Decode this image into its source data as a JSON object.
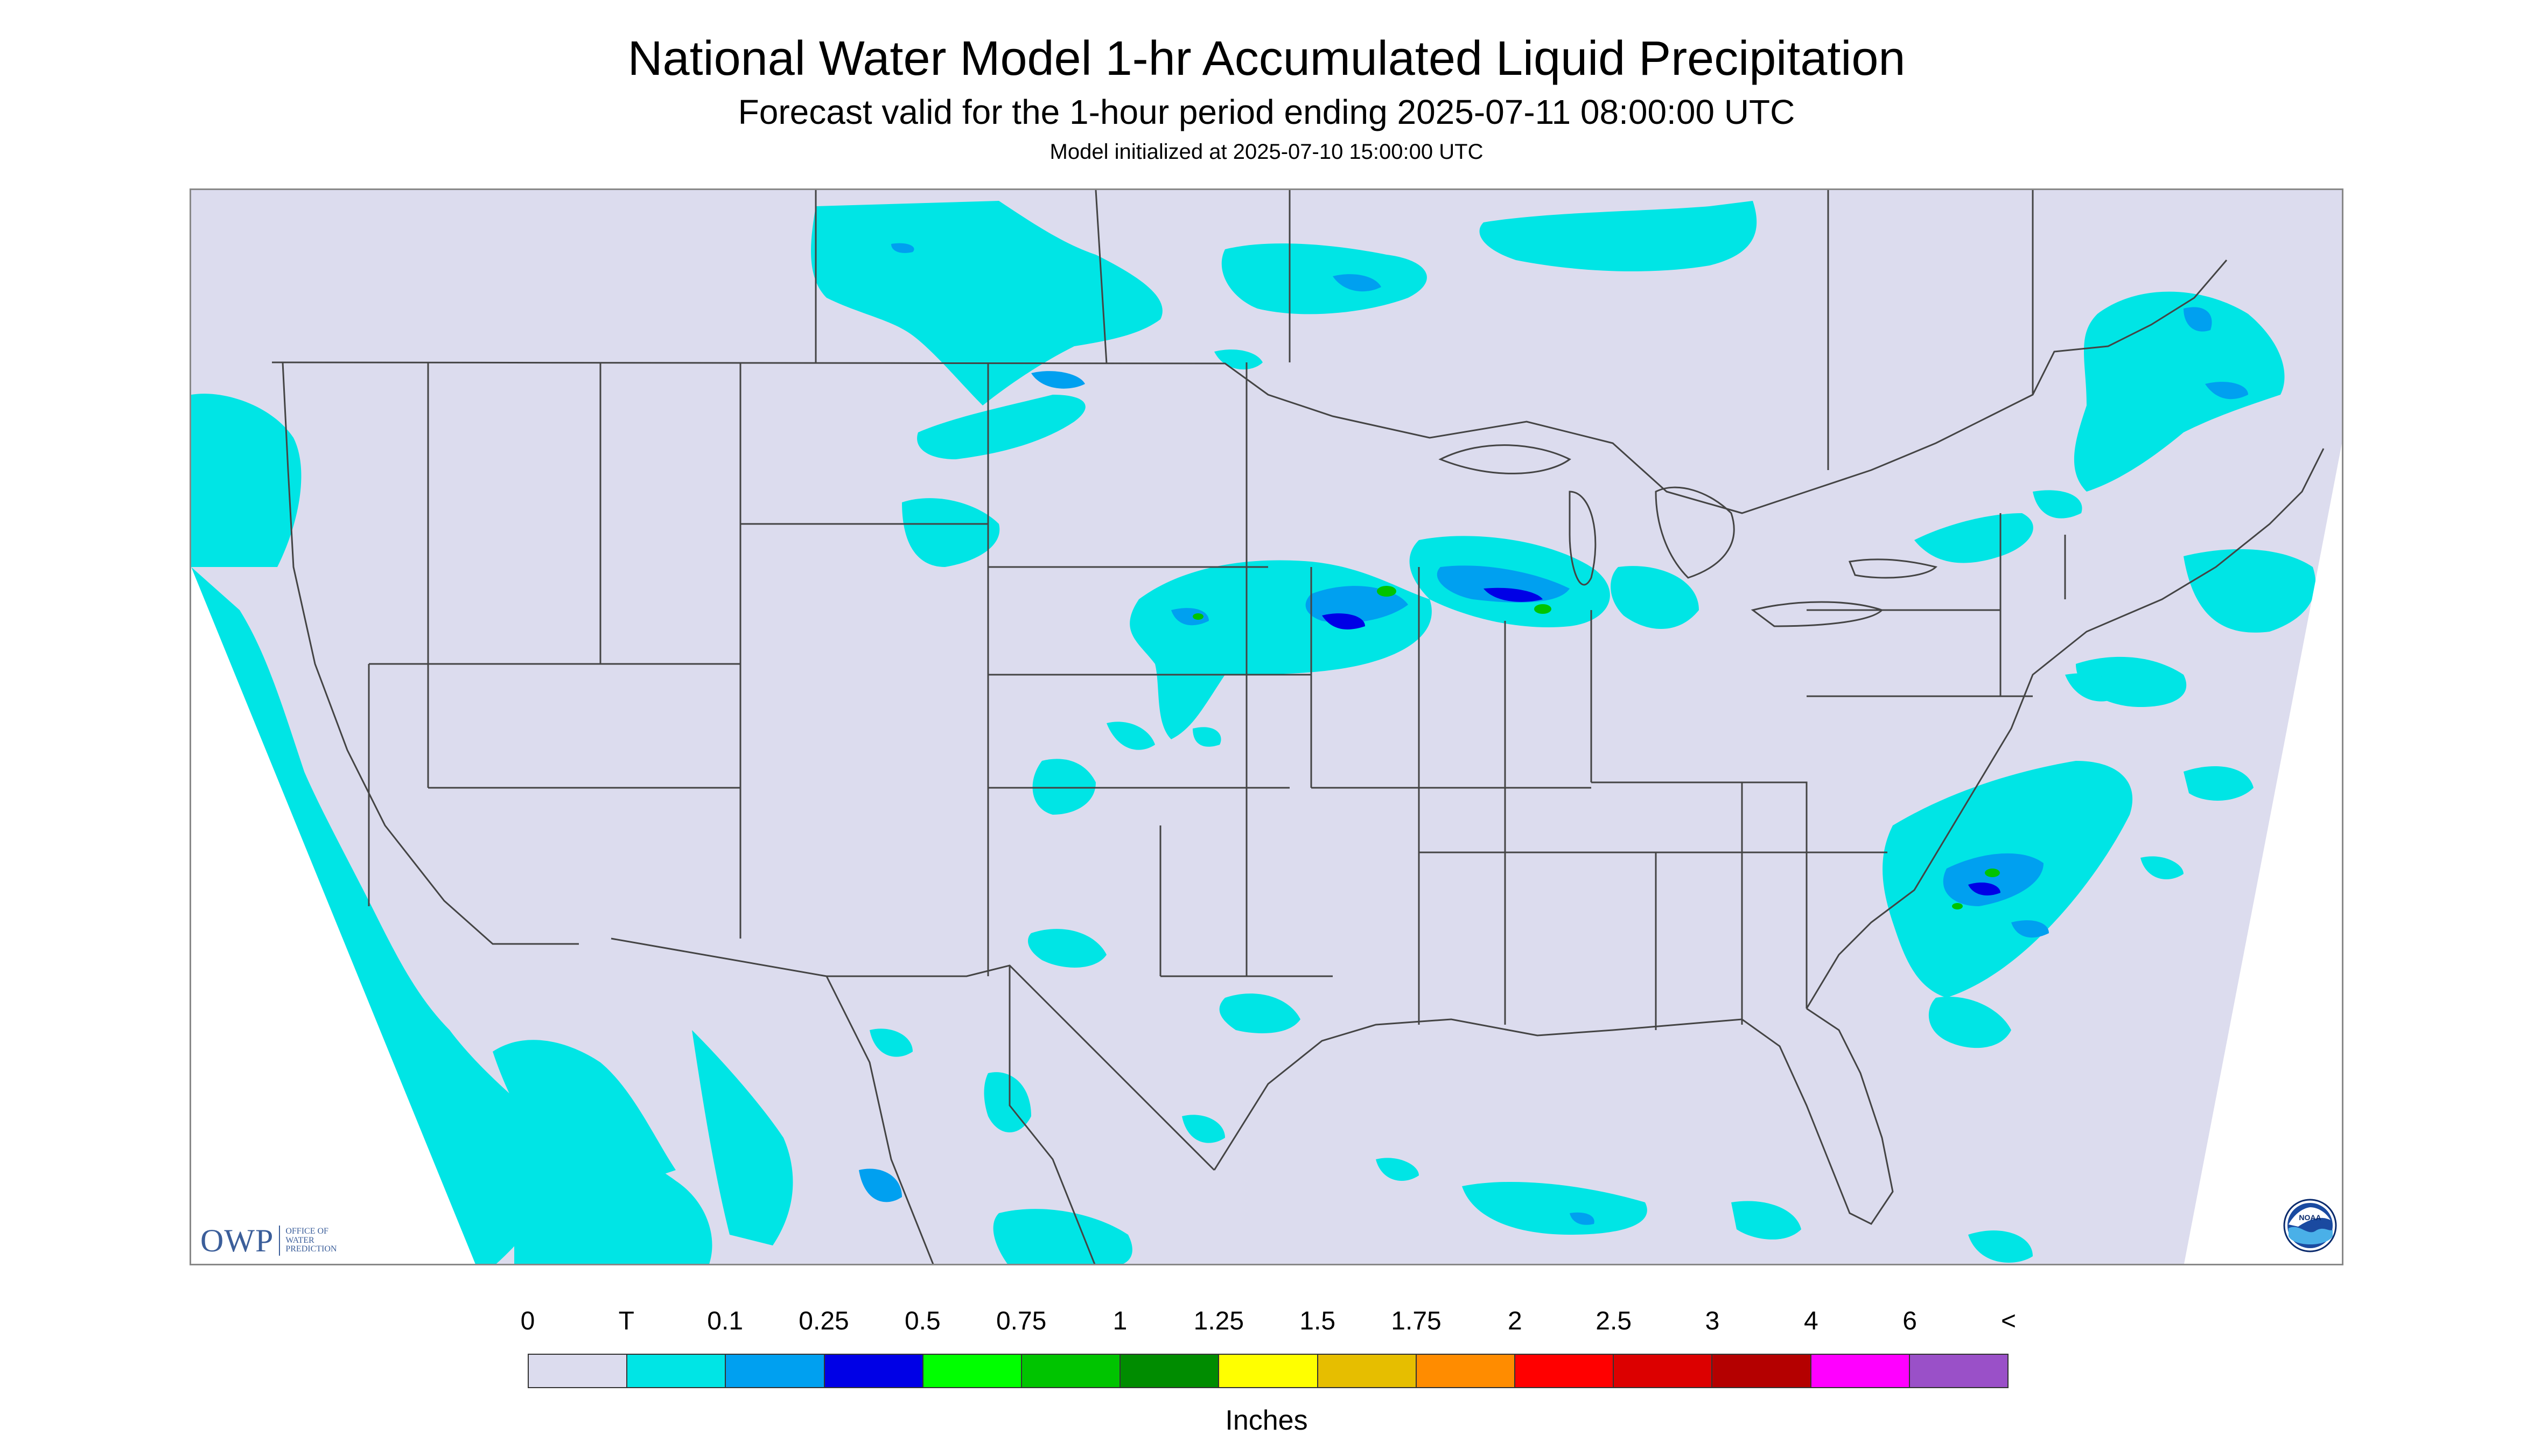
{
  "header": {
    "title": "National Water Model 1-hr Accumulated Liquid Precipitation",
    "subtitle": "Forecast valid for the 1-hour period ending 2025-07-11 08:00:00 UTC",
    "init": "Model initialized at 2025-07-10 15:00:00 UTC"
  },
  "map": {
    "projection": "Lambert conformal (CONUS)",
    "background_color": "#dcdcee",
    "boundary_color": "#444444",
    "outside_color": "#ffffff"
  },
  "logos": {
    "owp_initials": "OWP",
    "owp_name_lines": [
      "Office of",
      "Water",
      "Prediction"
    ],
    "noaa": "NOAA"
  },
  "legend": {
    "labels": [
      "0",
      "T",
      "0.1",
      "0.25",
      "0.5",
      "0.75",
      "1",
      "1.25",
      "1.5",
      "1.75",
      "2",
      "2.5",
      "3",
      "4",
      "6",
      "<"
    ],
    "colors": [
      "#dcdcee",
      "#00e5e5",
      "#00a0f0",
      "#0000e6",
      "#00ff00",
      "#00c400",
      "#008c00",
      "#ffff00",
      "#e6be00",
      "#ff8c00",
      "#ff0000",
      "#dc0000",
      "#b40000",
      "#ff00ff",
      "#9a50c8"
    ],
    "units": "Inches"
  }
}
